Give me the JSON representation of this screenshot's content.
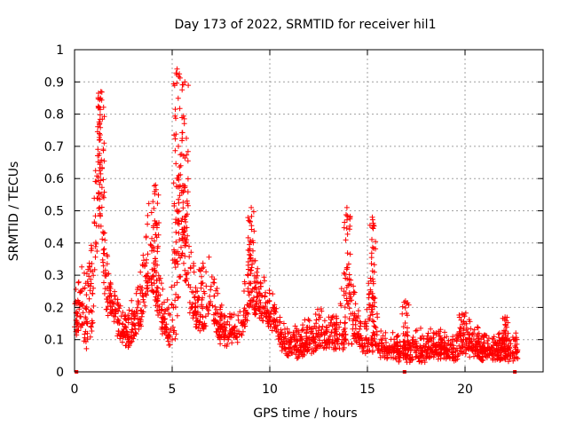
{
  "chart_data": {
    "type": "scatter",
    "title": "Day 173 of 2022, SRMTID for receiver hil1",
    "xlabel": "GPS time / hours",
    "ylabel": "SRMTID / TECUs",
    "xlim": [
      0,
      24
    ],
    "ylim": [
      0,
      1
    ],
    "xticks": [
      0,
      5,
      10,
      15,
      20
    ],
    "yticks": [
      0,
      0.1,
      0.2,
      0.3,
      0.4,
      0.5,
      0.6,
      0.7,
      0.8,
      0.9,
      1
    ],
    "grid": true,
    "marker": "plus",
    "series_color": "#ff0000",
    "envelope": {
      "x": [
        0.0,
        0.3,
        0.6,
        0.9,
        1.1,
        1.3,
        1.6,
        1.9,
        2.3,
        2.7,
        3.0,
        3.4,
        3.8,
        4.1,
        4.5,
        4.9,
        5.2,
        5.5,
        5.8,
        6.2,
        6.6,
        7.0,
        7.4,
        7.8,
        8.2,
        8.6,
        9.0,
        9.4,
        9.8,
        10.2,
        10.6,
        11.0,
        11.5,
        12.0,
        12.5,
        13.0,
        13.5,
        14.0,
        14.4,
        14.8,
        15.2,
        15.6,
        16.0,
        16.5,
        17.0,
        17.5,
        18.0,
        18.5,
        19.0,
        19.5,
        20.0,
        20.5,
        21.0,
        21.5,
        22.0,
        22.4,
        22.7
      ],
      "base": [
        0.15,
        0.2,
        0.15,
        0.22,
        0.45,
        0.6,
        0.25,
        0.22,
        0.14,
        0.12,
        0.14,
        0.2,
        0.35,
        0.3,
        0.16,
        0.14,
        0.25,
        0.5,
        0.28,
        0.2,
        0.2,
        0.24,
        0.14,
        0.12,
        0.13,
        0.14,
        0.28,
        0.22,
        0.2,
        0.16,
        0.1,
        0.08,
        0.08,
        0.1,
        0.12,
        0.12,
        0.11,
        0.18,
        0.14,
        0.08,
        0.17,
        0.08,
        0.07,
        0.07,
        0.06,
        0.07,
        0.07,
        0.08,
        0.07,
        0.06,
        0.1,
        0.08,
        0.07,
        0.07,
        0.07,
        0.07,
        0.07
      ],
      "spread": [
        0.08,
        0.15,
        0.2,
        0.25,
        0.35,
        0.3,
        0.18,
        0.12,
        0.08,
        0.1,
        0.1,
        0.15,
        0.2,
        0.2,
        0.1,
        0.12,
        0.4,
        0.35,
        0.18,
        0.15,
        0.18,
        0.16,
        0.1,
        0.06,
        0.08,
        0.1,
        0.2,
        0.12,
        0.1,
        0.08,
        0.05,
        0.05,
        0.06,
        0.08,
        0.1,
        0.08,
        0.08,
        0.25,
        0.1,
        0.06,
        0.25,
        0.05,
        0.05,
        0.05,
        0.05,
        0.06,
        0.06,
        0.06,
        0.05,
        0.05,
        0.08,
        0.06,
        0.05,
        0.05,
        0.06,
        0.06,
        0.05
      ]
    },
    "peaks": [
      {
        "x": 1.35,
        "y": 0.87
      },
      {
        "x": 5.25,
        "y": 0.94
      },
      {
        "x": 5.65,
        "y": 0.9
      },
      {
        "x": 4.15,
        "y": 0.58
      },
      {
        "x": 9.05,
        "y": 0.51
      },
      {
        "x": 13.95,
        "y": 0.51
      },
      {
        "x": 15.25,
        "y": 0.48
      },
      {
        "x": 16.95,
        "y": 0.22
      },
      {
        "x": 19.85,
        "y": 0.18
      },
      {
        "x": 22.05,
        "y": 0.17
      }
    ],
    "zero_points": [
      0.1,
      16.9,
      22.55
    ],
    "point_count": 2100
  }
}
